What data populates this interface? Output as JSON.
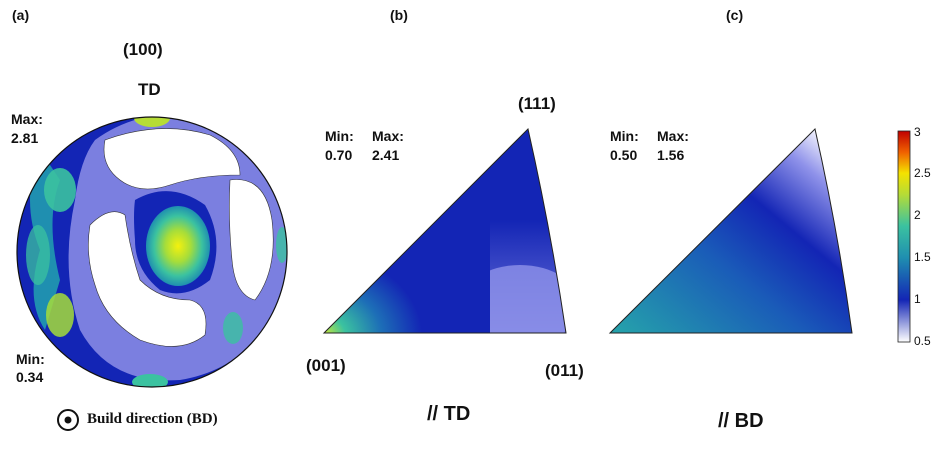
{
  "panels": {
    "a": {
      "label": "(a)",
      "plane": "(100)",
      "direction": "TD",
      "max_label": "Max:",
      "max_value": "2.81",
      "min_label": "Min:",
      "min_value": "0.34",
      "legend_text": "Build direction (BD)"
    },
    "b": {
      "label": "(b)",
      "min_label": "Min:",
      "min_value": "0.70",
      "max_label": "Max:",
      "max_value": "2.41",
      "corner_top": "(111)",
      "corner_left": "(001)",
      "corner_right": "(011)",
      "caption": "// TD"
    },
    "c": {
      "label": "(c)",
      "min_label": "Min:",
      "min_value": "0.50",
      "max_label": "Max:",
      "max_value": "1.56",
      "caption": "// BD"
    }
  },
  "colors": {
    "low": "#ffffff",
    "mid_low": "#7b7fe0",
    "mid": "#1325b5",
    "mid_high": "#1f8fb0",
    "high": "#3bc2a0",
    "top": "#d6ea2a",
    "max": "#c00000"
  },
  "chart_data": [
    {
      "type": "heatmap",
      "title": "(100)",
      "subtype": "pole figure",
      "min": 0.34,
      "max": 2.81,
      "scale": [
        0.5,
        3
      ]
    },
    {
      "type": "heatmap",
      "subtype": "inverse pole figure",
      "caption": "// TD",
      "min": 0.7,
      "max": 2.41,
      "corners": [
        "(001)",
        "(011)",
        "(111)"
      ],
      "scale": [
        0.5,
        3
      ]
    },
    {
      "type": "heatmap",
      "subtype": "inverse pole figure",
      "caption": "// BD",
      "min": 0.5,
      "max": 1.56,
      "scale": [
        0.5,
        3
      ]
    }
  ],
  "colorbar": {
    "ticks": [
      "3",
      "2.5",
      "2",
      "1.5",
      "1",
      "0.5"
    ],
    "range": [
      0.5,
      3
    ]
  }
}
